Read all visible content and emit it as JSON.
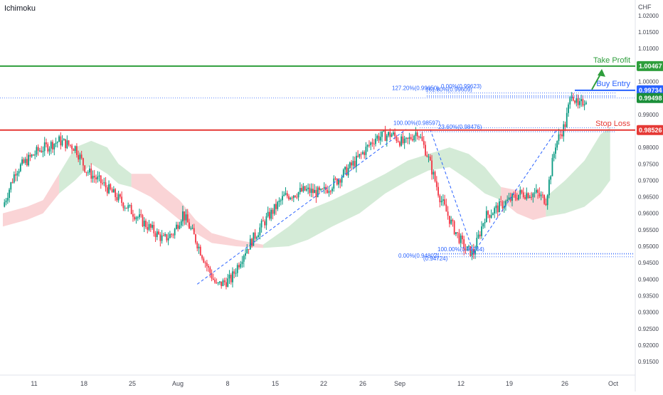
{
  "indicator": "Ichimoku",
  "colors": {
    "background": "#ffffff",
    "candle_up": "#089981",
    "candle_down": "#f23645",
    "take_profit": "#2e9e3c",
    "buy_entry": "#2962ff",
    "stop_loss": "#e53935",
    "current_price": "#1b8f3a",
    "fib": "#2962ff",
    "cloud_bull": "#9fd3a6",
    "cloud_bear": "#f6a9ae",
    "axis_text": "#434651"
  },
  "chart_data": {
    "type": "candlestick",
    "currency": "CHF",
    "ylim": [
      0.912,
      1.023
    ],
    "y_ticks": [
      "1.02000",
      "1.01500",
      "1.01000",
      "1.00500",
      "1.00000",
      "0.99500",
      "0.99000",
      "0.98500",
      "0.98000",
      "0.97500",
      "0.97000",
      "0.96500",
      "0.96000",
      "0.95500",
      "0.95000",
      "0.94500",
      "0.94000",
      "0.93500",
      "0.93000",
      "0.92500",
      "0.92000",
      "0.91500"
    ],
    "x_ticks": [
      "11",
      "18",
      "25",
      "Aug",
      "8",
      "15",
      "22",
      "26",
      "Sep",
      "12",
      "19",
      "26",
      "Oct"
    ],
    "price_path": [
      [
        0,
        0.962
      ],
      [
        8,
        0.973
      ],
      [
        22,
        0.979
      ],
      [
        35,
        0.982
      ],
      [
        45,
        0.98
      ],
      [
        52,
        0.973
      ],
      [
        62,
        0.969
      ],
      [
        75,
        0.963
      ],
      [
        88,
        0.957
      ],
      [
        100,
        0.952
      ],
      [
        106,
        0.954
      ],
      [
        112,
        0.96
      ],
      [
        120,
        0.952
      ],
      [
        128,
        0.943
      ],
      [
        133,
        0.938
      ],
      [
        142,
        0.94
      ],
      [
        150,
        0.948
      ],
      [
        162,
        0.957
      ],
      [
        175,
        0.965
      ],
      [
        188,
        0.967
      ],
      [
        198,
        0.966
      ],
      [
        208,
        0.97
      ],
      [
        220,
        0.976
      ],
      [
        232,
        0.983
      ],
      [
        242,
        0.984
      ],
      [
        250,
        0.981
      ],
      [
        258,
        0.985
      ],
      [
        264,
        0.978
      ],
      [
        272,
        0.965
      ],
      [
        280,
        0.956
      ],
      [
        288,
        0.949
      ],
      [
        293,
        0.948
      ],
      [
        300,
        0.959
      ],
      [
        312,
        0.963
      ],
      [
        322,
        0.966
      ],
      [
        332,
        0.966
      ],
      [
        338,
        0.964
      ],
      [
        344,
        0.981
      ],
      [
        350,
        0.987
      ],
      [
        354,
        0.997
      ],
      [
        358,
        0.992
      ],
      [
        363,
        0.995
      ]
    ],
    "levels": [
      {
        "name": "Take Profit",
        "price": 1.00467,
        "label": "1.00467"
      },
      {
        "name": "Buy Entry",
        "price": 0.99734,
        "label": "0.99734"
      },
      {
        "name": "Stop Loss",
        "price": 0.98526,
        "label": "0.98526"
      }
    ],
    "current_price": 0.99498,
    "current_price_label": "0.99498",
    "fib_labels": [
      {
        "text": "127.20%(0.99650)",
        "price": 0.9965
      },
      {
        "text": "161.80%(0.99609)",
        "price": 0.99609
      },
      {
        "text": "0.00%(0.99623)",
        "price": 0.99623
      },
      {
        "text": "100.00%(0.98597)",
        "price": 0.98597
      },
      {
        "text": "23.60%(0.98476)",
        "price": 0.98476
      },
      {
        "text": "100.00%(0.94764)",
        "price": 0.94764
      },
      {
        "text": "0.00%(0.94802)",
        "price": 0.94802
      },
      {
        "text": "(0.94724)",
        "price": 0.94724
      }
    ],
    "fib_swings": [
      {
        "from": [
          121,
          0.9385
        ],
        "to": [
          251,
          0.9855
        ]
      },
      {
        "from": [
          266,
          0.9855
        ],
        "to": [
          293,
          0.948
        ]
      },
      {
        "from": [
          293,
          0.948
        ],
        "to": [
          345,
          0.9855
        ]
      }
    ],
    "cloud_segments": [
      {
        "bull": false,
        "pts": [
          [
            0,
            0.956,
            0.96
          ],
          [
            15,
            0.958,
            0.962
          ],
          [
            25,
            0.96,
            0.964
          ],
          [
            35,
            0.966,
            0.972
          ]
        ]
      },
      {
        "bull": true,
        "pts": [
          [
            35,
            0.966,
            0.972
          ],
          [
            45,
            0.97,
            0.98
          ],
          [
            55,
            0.975,
            0.982
          ],
          [
            65,
            0.972,
            0.98
          ],
          [
            72,
            0.969,
            0.975
          ],
          [
            80,
            0.968,
            0.972
          ]
        ]
      },
      {
        "bull": false,
        "pts": [
          [
            80,
            0.968,
            0.972
          ],
          [
            92,
            0.965,
            0.972
          ],
          [
            100,
            0.962,
            0.968
          ],
          [
            110,
            0.958,
            0.964
          ],
          [
            120,
            0.954,
            0.958
          ],
          [
            130,
            0.951,
            0.954
          ]
        ]
      },
      {
        "bull": false,
        "pts": [
          [
            130,
            0.951,
            0.954
          ],
          [
            145,
            0.95,
            0.952
          ],
          [
            162,
            0.9495,
            0.9505
          ]
        ]
      },
      {
        "bull": true,
        "pts": [
          [
            162,
            0.9495,
            0.9505
          ],
          [
            178,
            0.95,
            0.956
          ],
          [
            190,
            0.952,
            0.961
          ],
          [
            205,
            0.956,
            0.964
          ],
          [
            222,
            0.96,
            0.968
          ],
          [
            238,
            0.966,
            0.972
          ],
          [
            252,
            0.97,
            0.976
          ],
          [
            265,
            0.973,
            0.978
          ],
          [
            278,
            0.974,
            0.98
          ],
          [
            290,
            0.97,
            0.978
          ],
          [
            300,
            0.966,
            0.974
          ],
          [
            310,
            0.964,
            0.968
          ]
        ]
      },
      {
        "bull": false,
        "pts": [
          [
            310,
            0.964,
            0.968
          ],
          [
            320,
            0.96,
            0.967
          ],
          [
            330,
            0.958,
            0.966
          ],
          [
            338,
            0.959,
            0.965
          ]
        ]
      },
      {
        "bull": true,
        "pts": [
          [
            338,
            0.959,
            0.965
          ],
          [
            350,
            0.96,
            0.97
          ],
          [
            362,
            0.962,
            0.976
          ],
          [
            372,
            0.966,
            0.984
          ],
          [
            378,
            0.97,
            0.986
          ]
        ]
      }
    ]
  }
}
